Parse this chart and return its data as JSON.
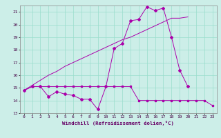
{
  "xlabel": "Windchill (Refroidissement éolien,°C)",
  "bg_color": "#cceee8",
  "grid_color": "#99ddcc",
  "line_color": "#aa00aa",
  "x_min": -0.5,
  "x_max": 23.5,
  "y_min": 13,
  "y_max": 21.5,
  "yticks": [
    13,
    14,
    15,
    16,
    17,
    18,
    19,
    20,
    21
  ],
  "xticks": [
    0,
    1,
    2,
    3,
    4,
    5,
    6,
    7,
    8,
    9,
    10,
    11,
    12,
    13,
    14,
    15,
    16,
    17,
    18,
    19,
    20,
    21,
    22,
    23
  ],
  "series1_x": [
    0,
    1,
    2,
    3,
    4,
    5,
    6,
    7,
    8,
    9,
    10,
    11,
    12,
    13,
    14,
    15,
    16,
    17,
    18,
    19,
    20,
    21,
    22,
    23
  ],
  "series1_y": [
    14.8,
    15.1,
    15.1,
    15.1,
    15.1,
    15.1,
    15.1,
    15.1,
    15.1,
    15.1,
    15.1,
    15.1,
    15.1,
    15.1,
    14.0,
    14.0,
    14.0,
    14.0,
    14.0,
    14.0,
    14.0,
    14.0,
    14.0,
    13.6
  ],
  "series2_x": [
    0,
    1,
    2,
    3,
    4,
    5,
    6,
    7,
    8,
    9,
    10,
    11,
    12,
    13,
    14,
    15,
    16,
    17,
    18,
    19,
    20
  ],
  "series2_y": [
    14.8,
    15.1,
    15.1,
    14.3,
    14.7,
    14.5,
    14.4,
    14.1,
    14.1,
    13.3,
    15.1,
    18.1,
    18.5,
    20.3,
    20.4,
    21.4,
    21.1,
    21.3,
    19.0,
    16.4,
    15.1
  ],
  "series3_x": [
    0,
    1,
    2,
    3,
    4,
    5,
    6,
    7,
    8,
    9,
    10,
    11,
    12,
    13,
    14,
    15,
    16,
    17,
    18,
    19,
    20
  ],
  "series3_y": [
    14.8,
    15.2,
    15.6,
    16.0,
    16.3,
    16.7,
    17.0,
    17.3,
    17.6,
    17.9,
    18.2,
    18.5,
    18.8,
    19.0,
    19.3,
    19.6,
    19.9,
    20.2,
    20.5,
    20.5,
    20.6
  ]
}
